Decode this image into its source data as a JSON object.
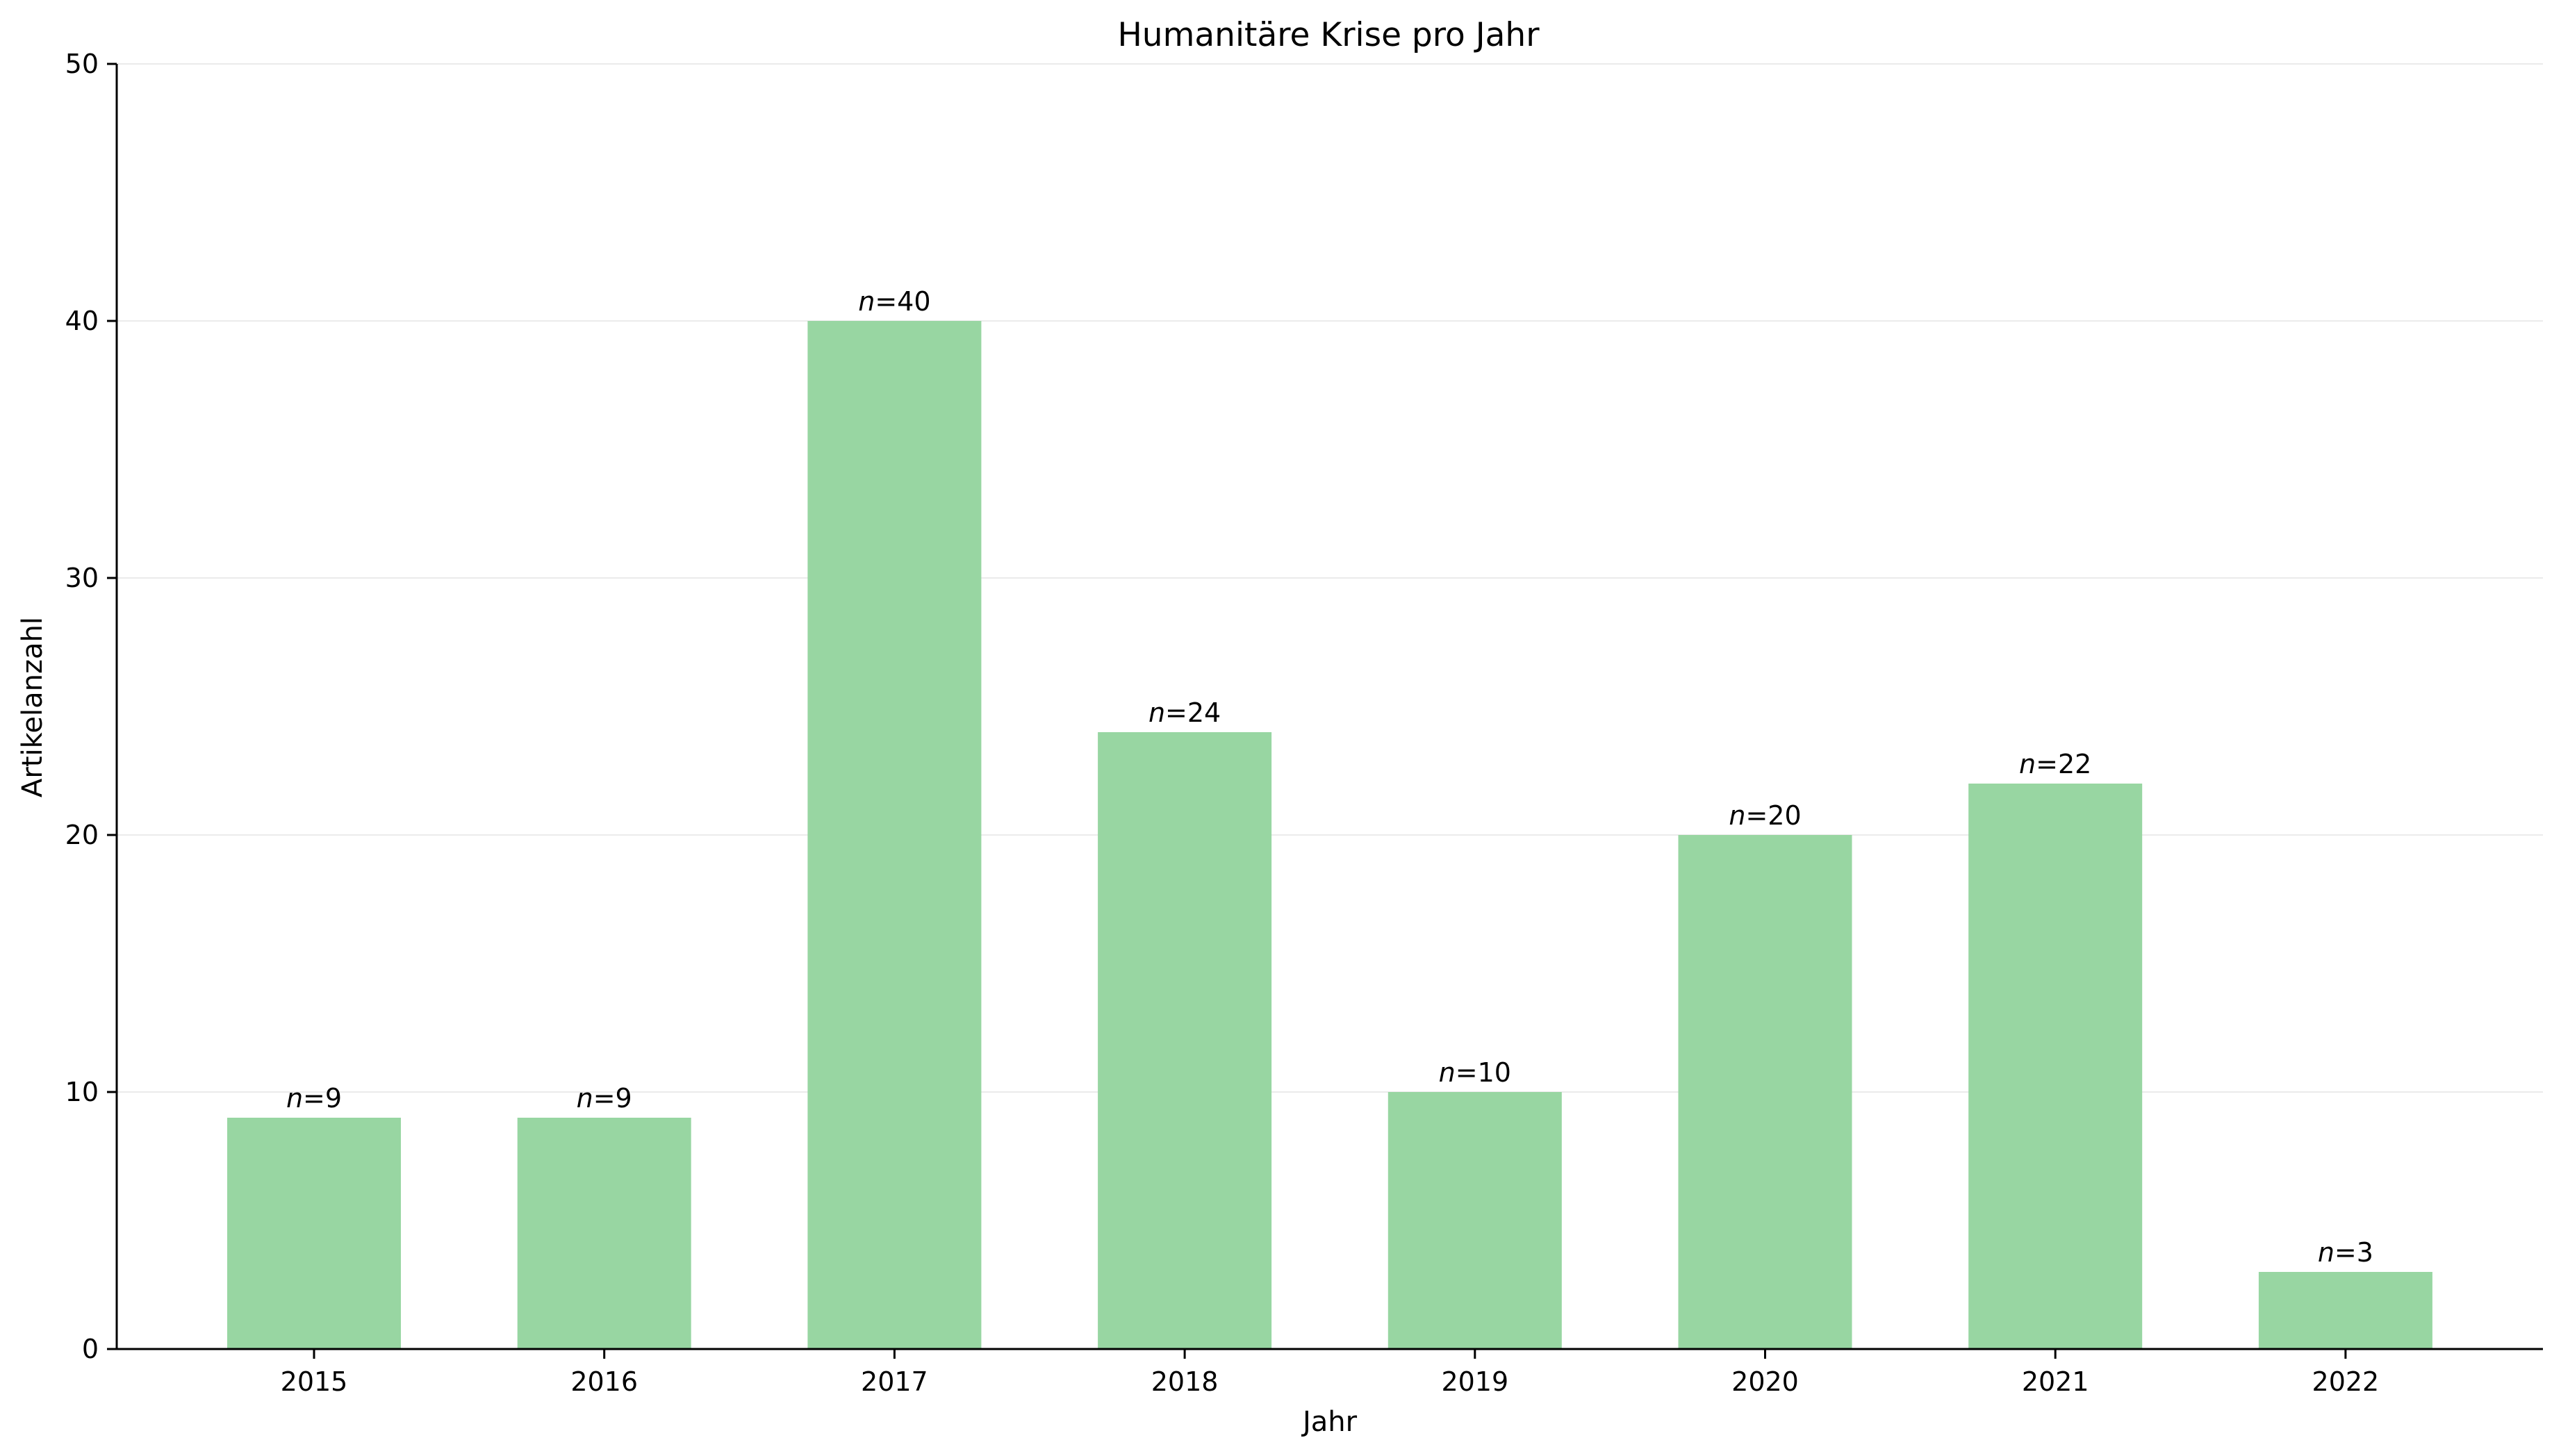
{
  "chart_data": {
    "type": "bar",
    "title": "Humanitäre Krise pro Jahr",
    "xlabel": "Jahr",
    "ylabel": "Artikelanzahl",
    "categories": [
      "2015",
      "2016",
      "2017",
      "2018",
      "2019",
      "2020",
      "2021",
      "2022"
    ],
    "values": [
      9,
      9,
      40,
      24,
      10,
      20,
      22,
      3
    ],
    "data_label_prefix": "n",
    "ylim": [
      0,
      50
    ],
    "yticks": [
      0,
      10,
      20,
      30,
      40,
      50
    ],
    "grid": "horizontal",
    "bar_color": "#98d6a2"
  }
}
